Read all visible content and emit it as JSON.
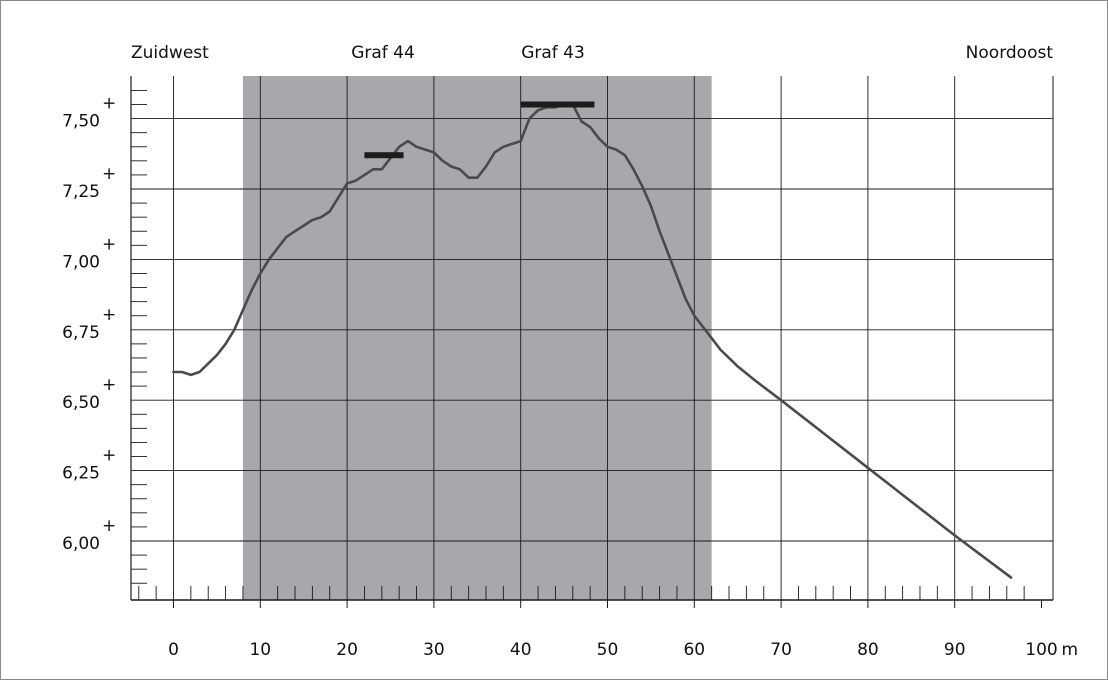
{
  "chart_data": {
    "type": "line",
    "title": "",
    "xlabel": "",
    "ylabel": "",
    "x_unit": "m",
    "xlim": [
      -5,
      101
    ],
    "ylim": [
      5.82,
      7.64
    ],
    "x_ticks": [
      0,
      10,
      20,
      30,
      40,
      50,
      60,
      70,
      80,
      90,
      100
    ],
    "x_tick_labels": [
      "0",
      "10",
      "20",
      "30",
      "40",
      "50",
      "60",
      "70",
      "80",
      "90",
      "100"
    ],
    "y_ticks": [
      6.0,
      6.25,
      6.5,
      6.75,
      7.0,
      7.25,
      7.5
    ],
    "y_tick_labels": [
      "6,00",
      "6,25",
      "6,50",
      "6,75",
      "7,00",
      "7,25",
      "7,50"
    ],
    "grid": true,
    "corner_labels": {
      "left": "Zuidwest",
      "right": "Noordoost"
    },
    "shaded_region": {
      "x": [
        8,
        62
      ],
      "color": "#a7a8ab"
    },
    "series": [
      {
        "color": "#4a4a4a",
        "x": [
          0,
          1,
          2,
          3,
          4,
          5,
          6,
          7,
          8,
          9,
          10,
          11,
          12,
          13,
          14,
          15,
          16,
          17,
          18,
          19,
          20,
          21,
          22,
          23,
          24,
          25,
          26,
          27,
          28,
          29,
          30,
          31,
          32,
          33,
          34,
          35,
          36,
          37,
          38,
          39,
          40,
          41,
          42,
          43,
          44,
          45,
          46,
          47,
          48,
          49,
          50,
          51,
          52,
          53,
          54,
          55,
          56,
          57,
          58,
          59,
          60,
          61,
          62,
          63,
          65,
          67,
          70,
          75,
          80,
          85,
          90,
          96.5
        ],
        "y": [
          6.6,
          6.6,
          6.59,
          6.6,
          6.63,
          6.66,
          6.7,
          6.75,
          6.82,
          6.89,
          6.95,
          7.0,
          7.04,
          7.08,
          7.1,
          7.12,
          7.14,
          7.15,
          7.17,
          7.22,
          7.27,
          7.28,
          7.3,
          7.32,
          7.32,
          7.36,
          7.4,
          7.42,
          7.4,
          7.39,
          7.38,
          7.35,
          7.33,
          7.32,
          7.29,
          7.29,
          7.33,
          7.38,
          7.4,
          7.41,
          7.42,
          7.5,
          7.53,
          7.54,
          7.54,
          7.55,
          7.55,
          7.49,
          7.47,
          7.43,
          7.4,
          7.39,
          7.37,
          7.32,
          7.26,
          7.19,
          7.1,
          7.02,
          6.94,
          6.86,
          6.8,
          6.76,
          6.72,
          6.68,
          6.62,
          6.57,
          6.5,
          6.38,
          6.26,
          6.14,
          6.02,
          5.87
        ]
      }
    ],
    "annotations": [
      {
        "text": "Graf 44",
        "x_range": [
          22,
          26.5
        ],
        "y": 7.37
      },
      {
        "text": "Graf 43",
        "x_range": [
          40,
          48.5
        ],
        "y": 7.55
      }
    ]
  }
}
